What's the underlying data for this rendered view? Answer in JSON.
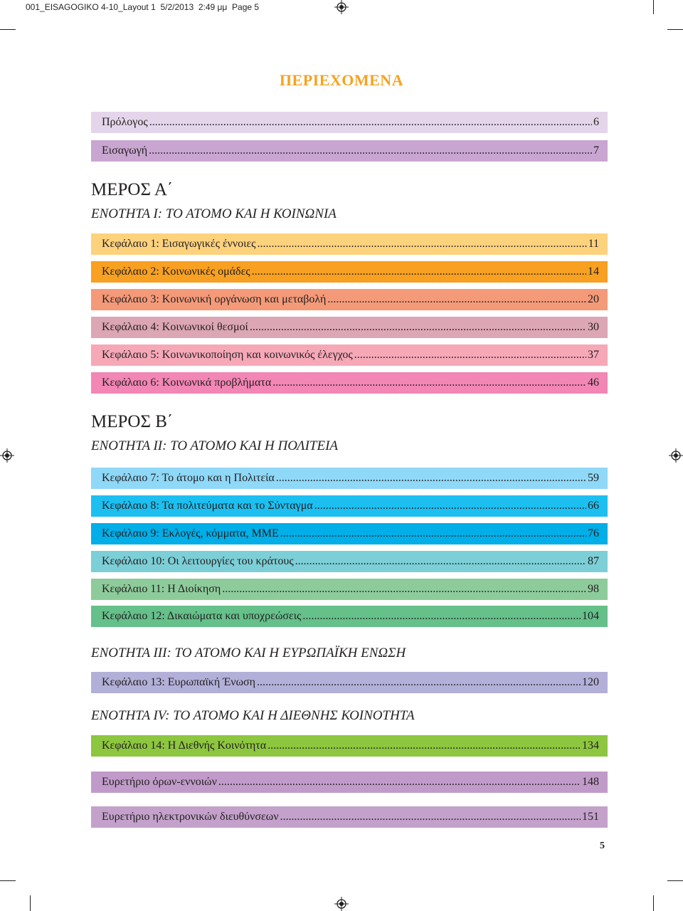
{
  "slug": "001_EISAGOGIKO 4-10_Layout 1  5/2/2013  2:49 μμ  Page 5",
  "title": "ΠΕΡΙΕΧΟΜΕΝΑ",
  "intro": [
    {
      "label": "Πρόλογος",
      "page": "6",
      "color": "#e5d5ea"
    },
    {
      "label": "Εισαγωγή",
      "page": "7",
      "color": "#c9a6d1"
    }
  ],
  "part_a": {
    "heading": "ΜΕΡΟΣ Α΄",
    "unit": "ΕΝΟΤΗΤΑ I: ΤΟ ΑΤΟΜΟ ΚΑΙ Η ΚΟΙΝΩΝΙΑ",
    "chapters": [
      {
        "label": "Κεφάλαιο 1: Εισαγωγικές έννοιες",
        "page": "11",
        "color": "#fdd27d"
      },
      {
        "label": "Κεφάλαιο 2: Κοινωνικές ομάδες",
        "page": "14",
        "color": "#f7a021"
      },
      {
        "label": "Κεφάλαιο 3: Κοινωνική οργάνωση και μεταβολή",
        "page": "20",
        "color": "#f49a79"
      },
      {
        "label": "Κεφάλαιο 4: Κοινωνικοί θεσμοί",
        "page": "30",
        "color": "#dca6b4"
      },
      {
        "label": "Κεφάλαιο 5: Κοινωνικοποίηση και κοινωνικός έλεγχος",
        "page": "37",
        "color": "#f6a8b7"
      },
      {
        "label": "Κεφάλαιο 6: Κοινωνικά προβλήματα",
        "page": "46",
        "color": "#f286b5"
      }
    ]
  },
  "part_b": {
    "heading": "ΜΕΡΟΣ Β΄",
    "unit": "ΕΝΟΤΗΤΑ II: ΤΟ ΑΤΟΜΟ ΚΑΙ Η ΠΟΛΙΤΕΙΑ",
    "chapters": [
      {
        "label": "Κεφάλαιο 7: Το άτομο και η Πολιτεία",
        "page": "59",
        "color": "#8fd8f7"
      },
      {
        "label": "Κεφάλαιο 8: Τα πολιτεύματα και το Σύνταγμα",
        "page": "66",
        "color": "#1cbff0"
      },
      {
        "label": "Κεφάλαιο 9: Εκλογές, κόμματα, ΜΜΕ",
        "page": "76",
        "color": "#00aee8"
      },
      {
        "label": "Κεφάλαιο 10: Οι λειτουργίες του κράτους",
        "page": "87",
        "color": "#7ccfd6"
      },
      {
        "label": "Κεφάλαιο 11: Η Διοίκηση",
        "page": "98",
        "color": "#8dcc9a"
      },
      {
        "label": "Κεφάλαιο 12: Δικαιώματα και υποχρεώσεις",
        "page": "104",
        "color": "#65c08a"
      }
    ]
  },
  "unit3": {
    "heading": "ΕΝΟΤΗΤΑ III: ΤΟ ΑΤΟΜΟ ΚΑΙ Η ΕΥΡΩΠΑΪΚΗ ΕΝΩΣΗ",
    "chapter": {
      "label": "Κεφάλαιο 13: Ευρωπαϊκή Ένωση",
      "page": "120",
      "color": "#b2b0d8"
    }
  },
  "unit4": {
    "heading": "ΕΝΟΤΗΤΑ IV: ΤΟ ΑΤΟΜΟ ΚΑΙ Η ΔΙΕΘΝΗΣ ΚΟΙΝΟΤΗΤΑ",
    "chapter": {
      "label": "Κεφάλαιο 14: Η Διεθνής Κοινότητα",
      "page": "134",
      "color": "#8dc63f"
    }
  },
  "indexes": [
    {
      "label": "Ευρετήριο όρων-εννοιών",
      "page": "148",
      "color": "#c09bc9"
    },
    {
      "label": "Ευρετήριο ηλεκτρονικών διευθύνσεων",
      "page": "151",
      "color": "#c3a1cb"
    }
  ],
  "page_number": "5"
}
